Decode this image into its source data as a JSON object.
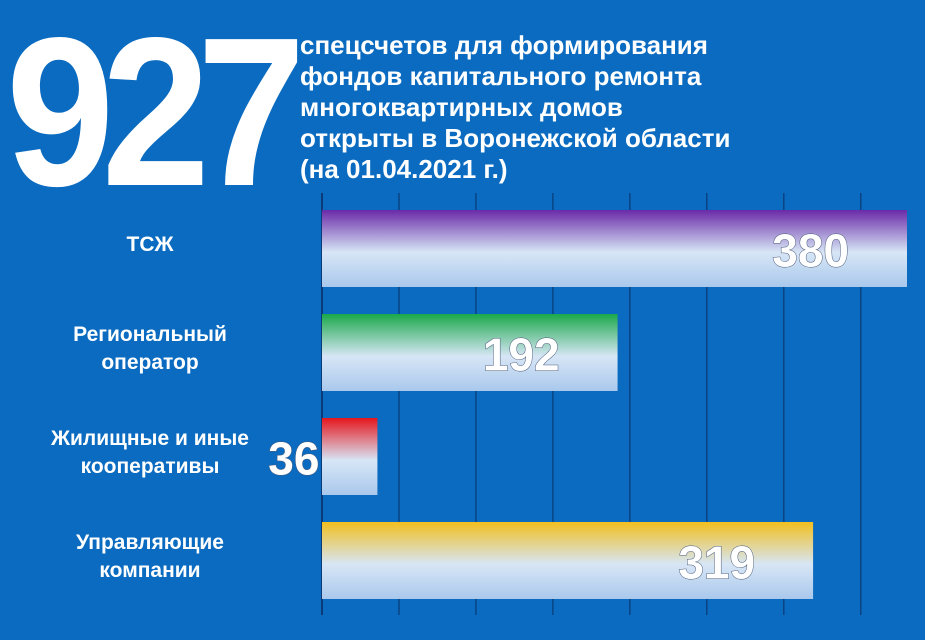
{
  "big_number": "927",
  "headline_lines": [
    "спецсчетов для формирования",
    "фондов капитального ремонта",
    "многоквартирных домов",
    "открыты в Воронежской области",
    "(на 01.04.2021 г.)"
  ],
  "chart_data": {
    "type": "bar",
    "orientation": "horizontal",
    "categories": [
      [
        "ТСЖ"
      ],
      [
        "Региональный",
        "оператор"
      ],
      [
        "Жилищные и иные",
        "кооперативы"
      ],
      [
        "Управляющие",
        "компании"
      ]
    ],
    "values": [
      380,
      192,
      36,
      319
    ],
    "data_labels": [
      "380",
      "192",
      "36",
      "319"
    ],
    "bar_colors": [
      "#6a2aa8",
      "#1aa84a",
      "#e5161d",
      "#f2bf1e"
    ],
    "xlim": [
      0,
      380
    ],
    "grid": true,
    "legend": "none"
  }
}
